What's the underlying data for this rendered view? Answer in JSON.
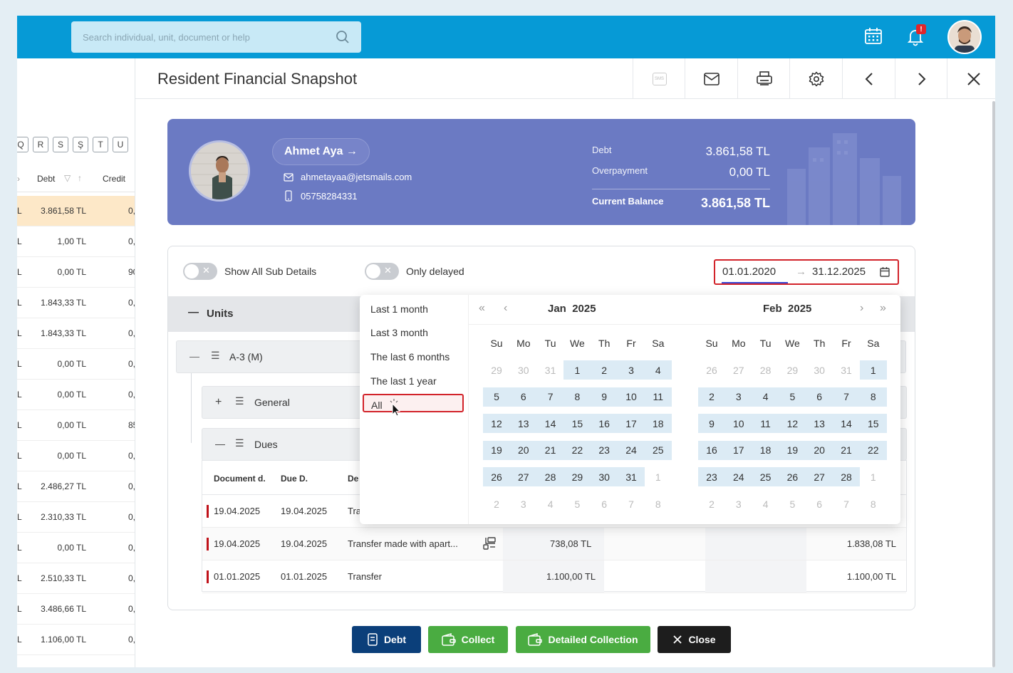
{
  "search": {
    "placeholder": "Search individual, unit, document or help"
  },
  "notifications": {
    "badge": "!"
  },
  "left_table": {
    "letters": [
      "Q",
      "R",
      "S",
      "Ş",
      "T",
      "U"
    ],
    "headers": {
      "debt": "Debt",
      "credit": "Credit"
    },
    "rows": [
      {
        "a": "L",
        "debt": "3.861,58 TL",
        "credit": "0,"
      },
      {
        "a": "L",
        "debt": "1,00 TL",
        "credit": "0,"
      },
      {
        "a": "L",
        "debt": "0,00 TL",
        "credit": "900,"
      },
      {
        "a": "L",
        "debt": "1.843,33 TL",
        "credit": "0,"
      },
      {
        "a": "L",
        "debt": "1.843,33 TL",
        "credit": "0,"
      },
      {
        "a": "L",
        "debt": "0,00 TL",
        "credit": "0,"
      },
      {
        "a": "L",
        "debt": "0,00 TL",
        "credit": "0,"
      },
      {
        "a": "L",
        "debt": "0,00 TL",
        "credit": "850,"
      },
      {
        "a": "L",
        "debt": "0,00 TL",
        "credit": "0,"
      },
      {
        "a": "L",
        "debt": "2.486,27 TL",
        "credit": "0,"
      },
      {
        "a": "L",
        "debt": "2.310,33 TL",
        "credit": "0,"
      },
      {
        "a": "L",
        "debt": "0,00 TL",
        "credit": "0,"
      },
      {
        "a": "L",
        "debt": "2.510,33 TL",
        "credit": "0,"
      },
      {
        "a": "L",
        "debt": "3.486,66 TL",
        "credit": "0,"
      },
      {
        "a": "L",
        "debt": "1.106,00 TL",
        "credit": "0,"
      }
    ]
  },
  "modal": {
    "title": "Resident Financial Snapshot",
    "sms_label": "SMS"
  },
  "resident": {
    "name": "Ahmet Aya →",
    "email": "ahmetayaa@jetsmails.com",
    "phone": "05758284331",
    "debt_label": "Debt",
    "debt_value": "3.861,58 TL",
    "overpayment_label": "Overpayment",
    "overpayment_value": "0,00 TL",
    "balance_label": "Current Balance",
    "balance_value": "3.861,58 TL"
  },
  "filters": {
    "show_sub_details": "Show All Sub Details",
    "only_delayed": "Only delayed",
    "date_start": "01.01.2020",
    "date_arrow": "→",
    "date_end": "31.12.2025"
  },
  "units": {
    "header": "Units",
    "unit": "A-3 (M)",
    "general": "General",
    "dues": "Dues"
  },
  "docs": {
    "headers": {
      "doc_date": "Document d.",
      "due_date": "Due D.",
      "desc": "De"
    },
    "rows": [
      {
        "doc": "19.04.2025",
        "due": "19.04.2025",
        "desc": "Tra",
        "amount": "",
        "balance": ""
      },
      {
        "doc": "19.04.2025",
        "due": "19.04.2025",
        "desc": "Transfer made with apart...",
        "amount": "738,08 TL",
        "balance": "1.838,08 TL"
      },
      {
        "doc": "01.01.2025",
        "due": "01.01.2025",
        "desc": "Transfer",
        "amount": "1.100,00 TL",
        "balance": "1.100,00 TL"
      }
    ]
  },
  "buttons": {
    "debt": "Debt",
    "collect": "Collect",
    "detailed": "Detailed Collection",
    "close": "Close"
  },
  "presets": [
    "Last 1 month",
    "Last 3 month",
    "The last 6 months",
    "The last 1 year",
    "All"
  ],
  "calendar": {
    "left_month": "Jan",
    "left_year": "2025",
    "right_month": "Feb",
    "right_year": "2025",
    "nav": {
      "prev_year": "«",
      "prev_month": "‹",
      "next_month": "›",
      "next_year": "»"
    },
    "weekdays": [
      "Su",
      "Mo",
      "Tu",
      "We",
      "Th",
      "Fr",
      "Sa"
    ],
    "jan": [
      "29",
      "30",
      "31",
      "1",
      "2",
      "3",
      "4",
      "5",
      "6",
      "7",
      "8",
      "9",
      "10",
      "11",
      "12",
      "13",
      "14",
      "15",
      "16",
      "17",
      "18",
      "19",
      "20",
      "21",
      "22",
      "23",
      "24",
      "25",
      "26",
      "27",
      "28",
      "29",
      "30",
      "31",
      "1",
      "2",
      "3",
      "4",
      "5",
      "6",
      "7",
      "8"
    ],
    "feb": [
      "26",
      "27",
      "28",
      "29",
      "30",
      "31",
      "1",
      "2",
      "3",
      "4",
      "5",
      "6",
      "7",
      "8",
      "9",
      "10",
      "11",
      "12",
      "13",
      "14",
      "15",
      "16",
      "17",
      "18",
      "19",
      "20",
      "21",
      "22",
      "23",
      "24",
      "25",
      "26",
      "27",
      "28",
      "1",
      "2",
      "3",
      "4",
      "5",
      "6",
      "7",
      "8"
    ],
    "jan_in_range": [
      3,
      33
    ],
    "feb_in_range": [
      6,
      33
    ]
  },
  "colors": {
    "topbar": "#069ad6",
    "hero": "#6b7ac3",
    "debt_btn": "#0b3f7a",
    "collect_btn": "#4aac41",
    "close_btn": "#1d1d1d",
    "highlight": "#d2232a"
  }
}
